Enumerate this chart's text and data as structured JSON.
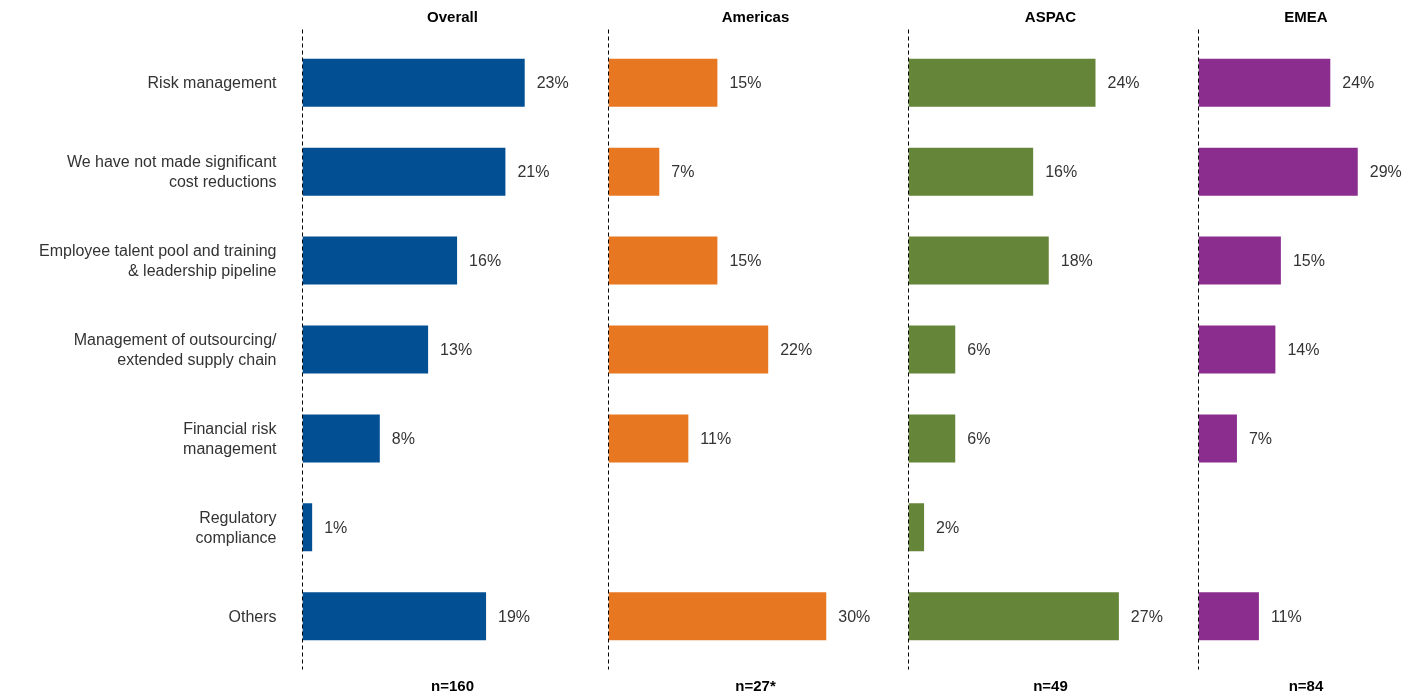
{
  "chart_data": [
    {
      "type": "bar",
      "orientation": "horizontal",
      "title": "Overall",
      "categories": [
        "Risk management",
        "We have not made significant\ncost reductions",
        "Employee talent pool and training\n& leadership pipeline",
        "Management of outsourcing/\nextended supply chain",
        "Financial risk\nmanagement",
        "Regulatory\ncompliance",
        "Others"
      ],
      "values": [
        23,
        21,
        16,
        13,
        8,
        1,
        19
      ],
      "value_labels": [
        "23%",
        "21%",
        "16%",
        "13%",
        "8%",
        "1%",
        "19%"
      ],
      "color": "#034f94",
      "tick_labels": "y",
      "grid": false,
      "annotations": [
        "n=160"
      ]
    },
    {
      "type": "bar",
      "orientation": "horizontal",
      "title": "Americas",
      "values": [
        15,
        7,
        15,
        22,
        11,
        null,
        30
      ],
      "value_labels": [
        "15%",
        "7%",
        "15%",
        "22%",
        "11%",
        null,
        "30%"
      ],
      "color": "#e87722",
      "tick_labels": false,
      "grid": false,
      "annotations": [
        "n=27*"
      ]
    },
    {
      "type": "bar",
      "orientation": "horizontal",
      "title": "ASPAC",
      "values": [
        24,
        16,
        18,
        6,
        6,
        2,
        27
      ],
      "value_labels": [
        "24%",
        "16%",
        "18%",
        "6%",
        "6%",
        "2%",
        "27%"
      ],
      "color": "#658539",
      "tick_labels": false,
      "grid": false,
      "annotations": [
        "n=49"
      ]
    },
    {
      "type": "bar",
      "orientation": "horizontal",
      "title": "EMEA",
      "values": [
        24,
        29,
        15,
        14,
        7,
        null,
        11
      ],
      "value_labels": [
        "24%",
        "29%",
        "15%",
        "14%",
        "7%",
        null,
        "11%"
      ],
      "color": "#8b2d8f",
      "tick_labels": false,
      "grid": false,
      "annotations": [
        "n=84"
      ]
    }
  ]
}
